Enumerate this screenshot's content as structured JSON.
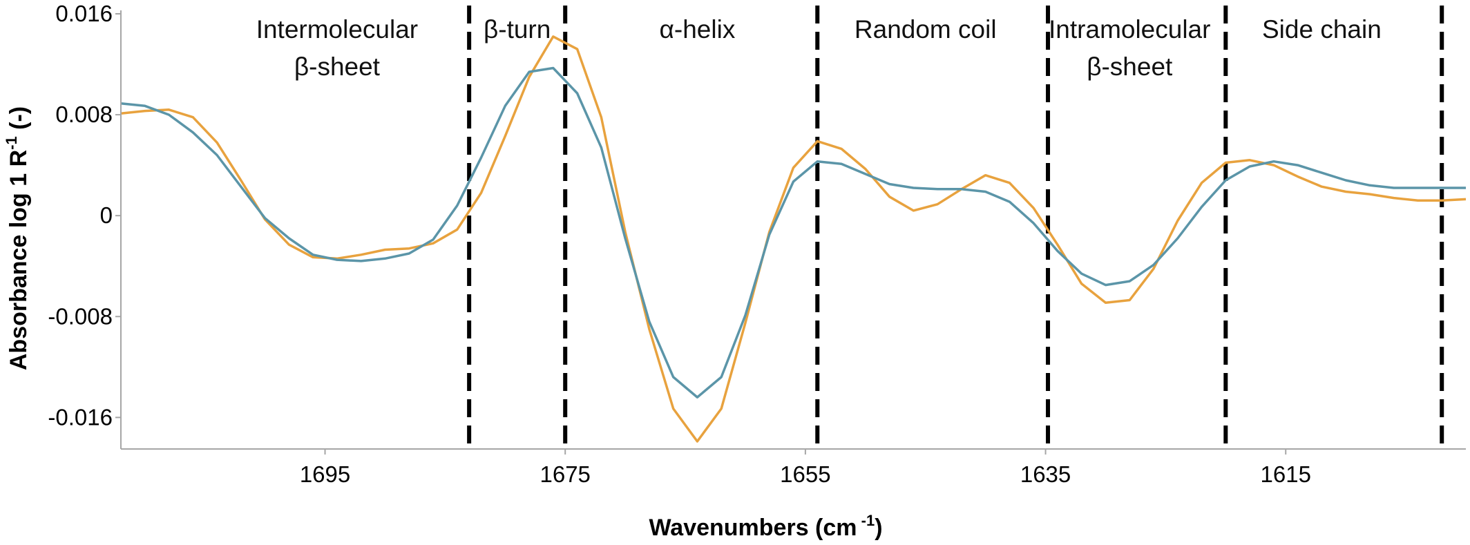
{
  "chart_data": {
    "type": "line",
    "title": "",
    "xlabel": {
      "main": "Wavenumbers (cm",
      "sup": " -1",
      "tail": ")"
    },
    "ylabel": {
      "main": "Absorbance log 1 R",
      "sup": "-1",
      "tail": " (-)"
    },
    "x_reversed": true,
    "xlim": [
      1712,
      1600
    ],
    "ylim": [
      -0.0185,
      0.016
    ],
    "x_ticks": [
      1695,
      1675,
      1655,
      1635,
      1615
    ],
    "x_tick_labels": [
      "1695",
      "1675",
      "1655",
      "1635",
      "1615"
    ],
    "y_ticks": [
      0.016,
      0.008,
      0,
      -0.008,
      -0.016
    ],
    "y_tick_labels": [
      "0.016",
      "0.008",
      "0",
      "-0.008",
      "-0.016"
    ],
    "grid": false,
    "legend": "none",
    "boundaries": [
      1683,
      1675,
      1654,
      1634.8,
      1620,
      1602
    ],
    "regions": [
      {
        "lines": [
          "Intermolecular",
          "β-sheet"
        ],
        "x": 1694
      },
      {
        "lines": [
          "β-turn"
        ],
        "x": 1679
      },
      {
        "lines": [
          "α-helix"
        ],
        "x": 1664
      },
      {
        "lines": [
          "Random coil"
        ],
        "x": 1645
      },
      {
        "lines": [
          "Intramolecular",
          "β-sheet"
        ],
        "x": 1628
      },
      {
        "lines": [
          "Side chain"
        ],
        "x": 1612
      }
    ],
    "series": [
      {
        "color": "#e8a23e",
        "x": [
          1712,
          1710,
          1708,
          1706,
          1704,
          1702,
          1700,
          1698,
          1696,
          1694,
          1692,
          1690,
          1688,
          1686,
          1684,
          1682,
          1680,
          1678,
          1676,
          1674,
          1672,
          1670,
          1668,
          1666,
          1664,
          1662,
          1660,
          1658,
          1656,
          1654,
          1652,
          1650,
          1648,
          1646,
          1644,
          1642,
          1640,
          1638,
          1636,
          1634,
          1632,
          1630,
          1628,
          1626,
          1624,
          1622,
          1620,
          1618,
          1616,
          1614,
          1612,
          1610,
          1608,
          1606,
          1604,
          1602,
          1600
        ],
        "y": [
          0.0081,
          0.0083,
          0.0084,
          0.0078,
          0.0058,
          0.0028,
          -0.0003,
          -0.0023,
          -0.0033,
          -0.0034,
          -0.0031,
          -0.0027,
          -0.0026,
          -0.0022,
          -0.0011,
          0.0018,
          0.0063,
          0.011,
          0.0142,
          0.0132,
          0.0078,
          -0.0013,
          -0.009,
          -0.0153,
          -0.0179,
          -0.0153,
          -0.0085,
          -0.0013,
          0.0038,
          0.0059,
          0.0053,
          0.0037,
          0.0015,
          0.0004,
          0.0009,
          0.0021,
          0.0032,
          0.0026,
          0.0006,
          -0.0023,
          -0.0054,
          -0.0069,
          -0.0067,
          -0.0042,
          -0.0004,
          0.0026,
          0.0042,
          0.0044,
          0.004,
          0.0031,
          0.0023,
          0.0019,
          0.0017,
          0.0014,
          0.0012,
          0.0012,
          0.0013
        ]
      },
      {
        "color": "#5b95a8",
        "x": [
          1712,
          1710,
          1708,
          1706,
          1704,
          1702,
          1700,
          1698,
          1696,
          1694,
          1692,
          1690,
          1688,
          1686,
          1684,
          1682,
          1680,
          1678,
          1676,
          1674,
          1672,
          1670,
          1668,
          1666,
          1664,
          1662,
          1660,
          1658,
          1656,
          1654,
          1652,
          1650,
          1648,
          1646,
          1644,
          1642,
          1640,
          1638,
          1636,
          1634,
          1632,
          1630,
          1628,
          1626,
          1624,
          1622,
          1620,
          1618,
          1616,
          1614,
          1612,
          1610,
          1608,
          1606,
          1604,
          1602,
          1600
        ],
        "y": [
          0.0089,
          0.0087,
          0.008,
          0.0066,
          0.0048,
          0.0023,
          -0.0002,
          -0.0018,
          -0.0031,
          -0.0035,
          -0.0036,
          -0.0034,
          -0.003,
          -0.0019,
          0.0008,
          0.0046,
          0.0087,
          0.0114,
          0.0117,
          0.0097,
          0.0054,
          -0.0018,
          -0.0084,
          -0.0128,
          -0.0144,
          -0.0128,
          -0.0079,
          -0.0015,
          0.0027,
          0.0043,
          0.0041,
          0.0033,
          0.0025,
          0.0022,
          0.0021,
          0.0021,
          0.0019,
          0.0011,
          -0.0006,
          -0.0028,
          -0.0046,
          -0.0055,
          -0.0052,
          -0.0039,
          -0.0018,
          0.0007,
          0.0028,
          0.0039,
          0.0043,
          0.004,
          0.0034,
          0.0028,
          0.0024,
          0.0022,
          0.0022,
          0.0022,
          0.0022
        ]
      }
    ]
  }
}
